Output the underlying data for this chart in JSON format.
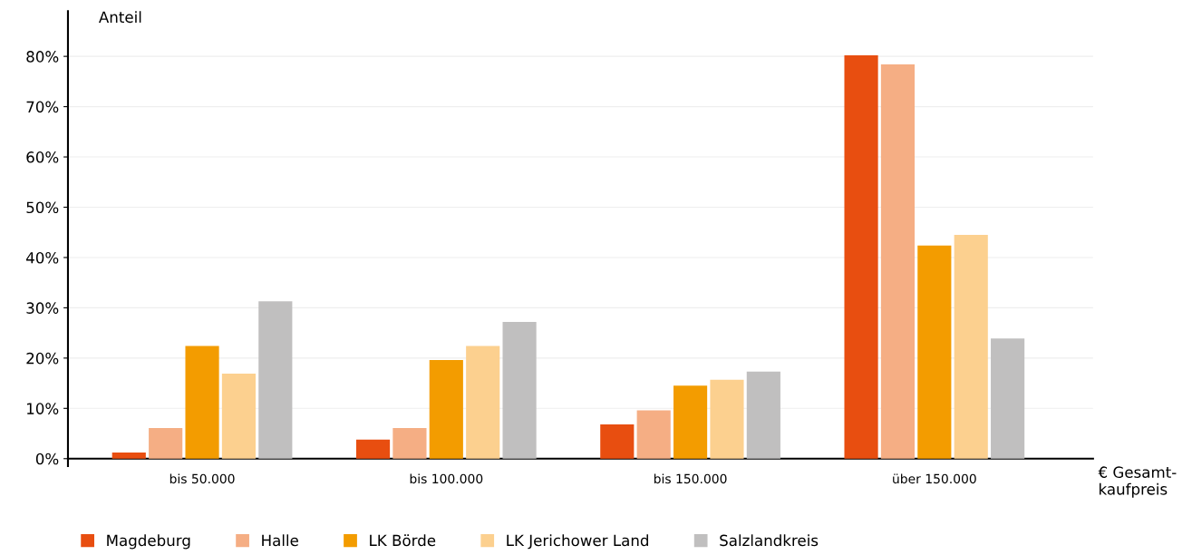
{
  "chart_data": {
    "type": "bar",
    "ylabel": "Anteil",
    "xlabel": "€ Gesamt-\nkaufpreis",
    "categories": [
      "bis 50.000",
      "bis 100.000",
      "bis 150.000",
      "über 150.000"
    ],
    "series": [
      {
        "name": "Magdeburg",
        "color": "#e84e10",
        "values": [
          1.2,
          3.8,
          6.8,
          80.2
        ]
      },
      {
        "name": "Halle",
        "color": "#f5ae84",
        "values": [
          6.1,
          6.1,
          9.6,
          78.4
        ]
      },
      {
        "name": "LK Börde",
        "color": "#f39c00",
        "values": [
          22.4,
          19.6,
          14.5,
          42.4
        ]
      },
      {
        "name": "LK Jerichower Land",
        "color": "#fcd08f",
        "values": [
          16.9,
          22.4,
          15.7,
          44.5
        ]
      },
      {
        "name": "Salzlandkreis",
        "color": "#c0bfbf",
        "values": [
          31.3,
          27.2,
          17.3,
          23.9
        ]
      }
    ],
    "ylim": [
      -1.5,
      89
    ],
    "yticks": [
      {
        "value": 0,
        "label": "0%"
      },
      {
        "value": 10,
        "label": "10%"
      },
      {
        "value": 20,
        "label": "20%"
      },
      {
        "value": 30,
        "label": "30%"
      },
      {
        "value": 40,
        "label": "40%"
      },
      {
        "value": 50,
        "label": "50%"
      },
      {
        "value": 60,
        "label": "60%"
      },
      {
        "value": 70,
        "label": "70%"
      },
      {
        "value": 80,
        "label": "80%"
      }
    ],
    "grid": "y",
    "legend": "bottom"
  }
}
